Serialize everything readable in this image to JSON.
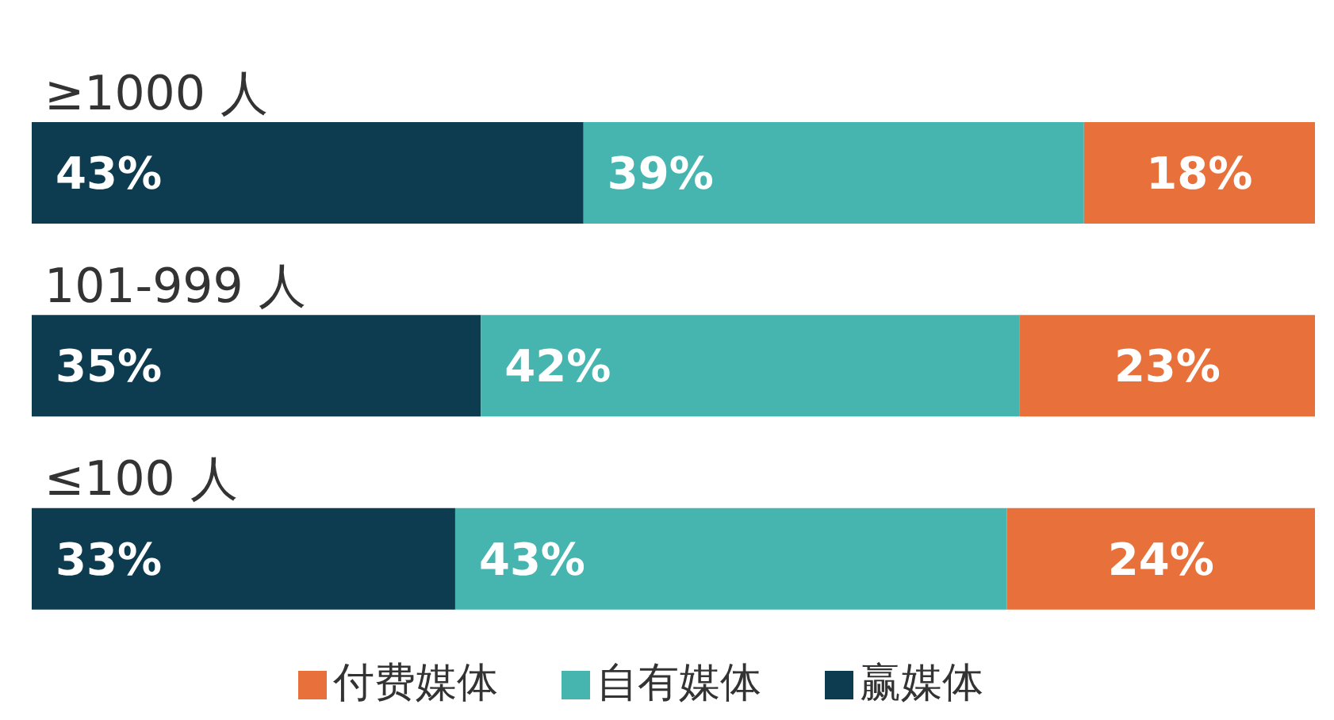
{
  "chart_data": {
    "type": "bar",
    "orientation": "horizontal",
    "stacked": true,
    "categories": [
      "≥1000 人",
      "101-999 人",
      "≤100 人"
    ],
    "series": [
      {
        "name": "赢媒体",
        "color": "#0d3b4f",
        "values": [
          43,
          35,
          33
        ],
        "value_labels": [
          "43%",
          "35%",
          "33%"
        ]
      },
      {
        "name": "自有媒体",
        "color": "#46b5b0",
        "values": [
          39,
          42,
          43
        ],
        "value_labels": [
          "39%",
          "42%",
          "43%"
        ]
      },
      {
        "name": "付费媒体",
        "color": "#e8703a",
        "values": [
          18,
          23,
          24
        ],
        "value_labels": [
          "18%",
          "23%",
          "24%"
        ]
      }
    ],
    "legend": "bottom"
  }
}
